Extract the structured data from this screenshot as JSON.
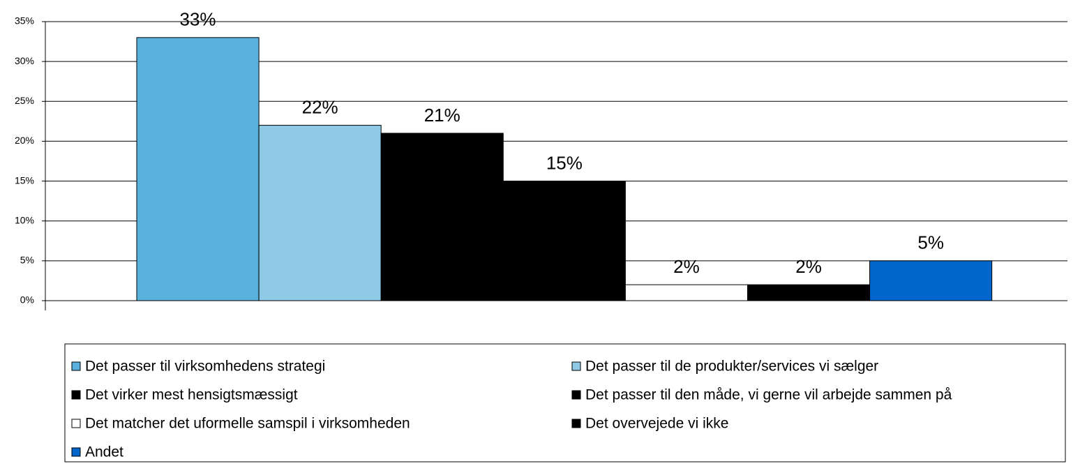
{
  "chart_data": {
    "type": "bar",
    "series": [
      {
        "name": "Det passer til virksomhedens strategi",
        "color": "#5ab0dc",
        "values": [
          33
        ],
        "value_labels": [
          "33%"
        ]
      },
      {
        "name": "Det passer til de produkter/services vi sælger",
        "color": "#8ecae6",
        "values": [
          22
        ],
        "value_labels": [
          "22%"
        ]
      },
      {
        "name": "Det virker mest hensigtsmæssigt",
        "color": "#000000",
        "values": [
          21
        ],
        "value_labels": [
          "21%"
        ]
      },
      {
        "name": "Det passer til den måde, vi gerne vil arbejde sammen på",
        "color": "#000000",
        "values": [
          15
        ],
        "value_labels": [
          "15%"
        ]
      },
      {
        "name": "Det matcher det uformelle samspil i virksomheden",
        "color": "#ffffff",
        "values": [
          2
        ],
        "value_labels": [
          "2%"
        ]
      },
      {
        "name": "Det overvejede vi ikke",
        "color": "#000000",
        "values": [
          2
        ],
        "value_labels": [
          "2%"
        ]
      },
      {
        "name": "Andet",
        "color": "#0066cc",
        "values": [
          5
        ],
        "value_labels": [
          "5%"
        ]
      }
    ],
    "ylim": [
      0,
      35
    ],
    "yticks": [
      {
        "value": 0,
        "label": "0%"
      },
      {
        "value": 5,
        "label": "5%"
      },
      {
        "value": 10,
        "label": "10%"
      },
      {
        "value": 15,
        "label": "15%"
      },
      {
        "value": 20,
        "label": "20%"
      },
      {
        "value": 25,
        "label": "25%"
      },
      {
        "value": 30,
        "label": "30%"
      },
      {
        "value": 35,
        "label": "35%"
      }
    ],
    "grid": true,
    "legend": "bottom"
  }
}
